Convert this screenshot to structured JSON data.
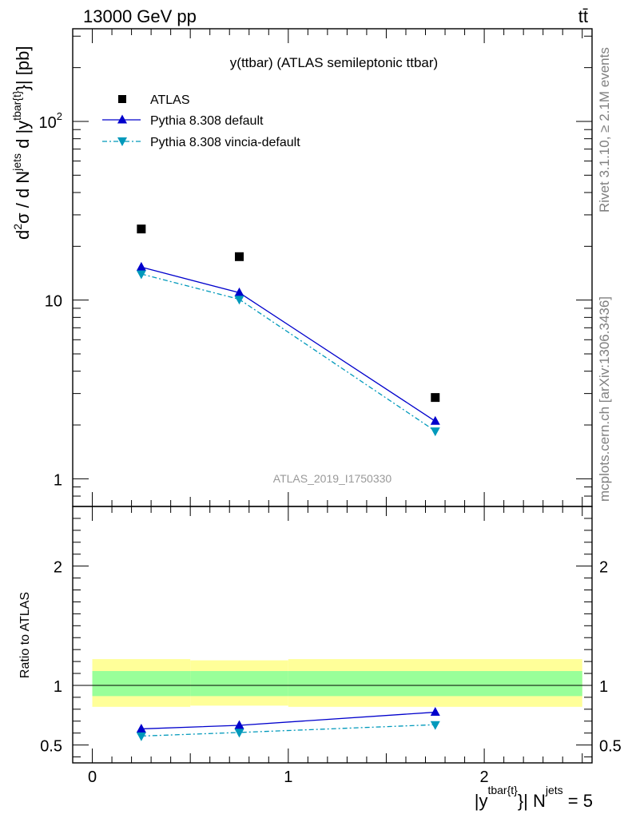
{
  "header": {
    "energy_label": "13000 GeV pp",
    "process_label": "tt̄"
  },
  "side_text": {
    "rivet": "Rivet 3.1.10, ≥ 2.1M events",
    "mcplots": "mcplots.cern.ch [arXiv:1306.3436]"
  },
  "chart_data": [
    {
      "type": "scatter",
      "panel": "main",
      "title": "y(ttbar) (ATLAS semileptonic ttbar)",
      "watermark": "ATLAS_2019_I1750330",
      "ylabel": {
        "d2": "d",
        "sup2": "2",
        "sigma": "σ / d N",
        "sup_jets": "jets",
        "d_y": " d |y",
        "sup_tbar": "tbar{t}",
        "tail": "}| [pb]"
      },
      "yscale": "log",
      "xlim": [
        -0.1,
        2.55
      ],
      "ylim": [
        0.7,
        330
      ],
      "y_ticks": [
        {
          "value": 1,
          "base": "1",
          "exp": ""
        },
        {
          "value": 10,
          "base": "10",
          "exp": ""
        },
        {
          "value": 100,
          "base": "10",
          "exp": "2"
        }
      ],
      "legend": {
        "placement": "top-left",
        "entries": [
          "ATLAS",
          "Pythia 8.308 default",
          "Pythia 8.308 vincia-default"
        ]
      },
      "series": [
        {
          "name": "ATLAS",
          "marker": "square",
          "color": "#000000",
          "x": [
            0.25,
            0.75,
            1.75
          ],
          "y": [
            25.0,
            17.5,
            2.85
          ]
        },
        {
          "name": "Pythia 8.308 default",
          "marker": "triangle-up",
          "color": "#0000cc",
          "x": [
            0.25,
            0.75,
            1.75
          ],
          "y": [
            15.3,
            11.0,
            2.1
          ]
        },
        {
          "name": "Pythia 8.308 vincia-default",
          "marker": "triangle-down",
          "color": "#0099bb",
          "x": [
            0.25,
            0.75,
            1.75
          ],
          "y": [
            14.0,
            10.1,
            1.85
          ]
        }
      ]
    },
    {
      "type": "line",
      "panel": "ratio",
      "ylabel": "Ratio to ATLAS",
      "xlabel": {
        "pre": "|y",
        "sup1": "tbar{t}",
        "mid": "}| N",
        "sup2": "jets",
        "post": " = 5"
      },
      "xlim": [
        -0.1,
        2.55
      ],
      "ylim": [
        0.35,
        2.5
      ],
      "x_ticks": [
        "0",
        "1",
        "2"
      ],
      "y_ticks": [
        "0.5",
        "1",
        "2"
      ],
      "bands": [
        {
          "name": "total uncertainty",
          "color": "#ffff99",
          "bins": [
            [
              0,
              0.5,
              0.82,
              1.22
            ],
            [
              0.5,
              1.0,
              0.83,
              1.21
            ],
            [
              1.0,
              2.5,
              0.82,
              1.22
            ]
          ]
        },
        {
          "name": "stat uncertainty",
          "color": "#99ff99",
          "bins": [
            [
              0,
              0.5,
              0.91,
              1.12
            ],
            [
              0.5,
              1.0,
              0.91,
              1.12
            ],
            [
              1.0,
              2.5,
              0.91,
              1.12
            ]
          ]
        }
      ],
      "series": [
        {
          "name": "Pythia 8.308 default",
          "marker": "triangle-up",
          "color": "#0000cc",
          "x": [
            0.25,
            0.75,
            1.75
          ],
          "y": [
            0.635,
            0.665,
            0.775
          ]
        },
        {
          "name": "Pythia 8.308 vincia-default",
          "marker": "triangle-down",
          "color": "#0099bb",
          "x": [
            0.25,
            0.75,
            1.75
          ],
          "y": [
            0.575,
            0.605,
            0.67
          ]
        }
      ]
    }
  ]
}
